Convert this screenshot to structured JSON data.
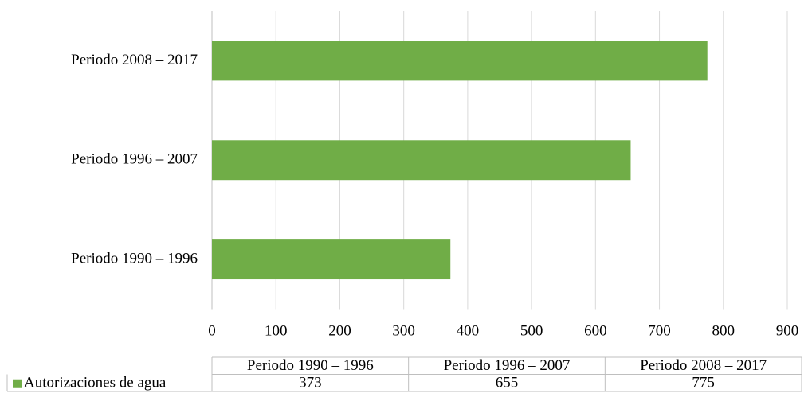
{
  "chart_data": {
    "type": "bar",
    "orientation": "horizontal",
    "categories": [
      "Periodo 1990 – 1996",
      "Periodo 1996 – 2007",
      "Periodo 2008 – 2017"
    ],
    "series": [
      {
        "name": "Autorizaciones de agua",
        "color": "#70ad47",
        "values": [
          373,
          655,
          775
        ]
      }
    ],
    "xlim": [
      0,
      900
    ],
    "xticks": [
      0,
      100,
      200,
      300,
      400,
      500,
      600,
      700,
      800,
      900
    ],
    "grid": true,
    "data_table": true
  }
}
